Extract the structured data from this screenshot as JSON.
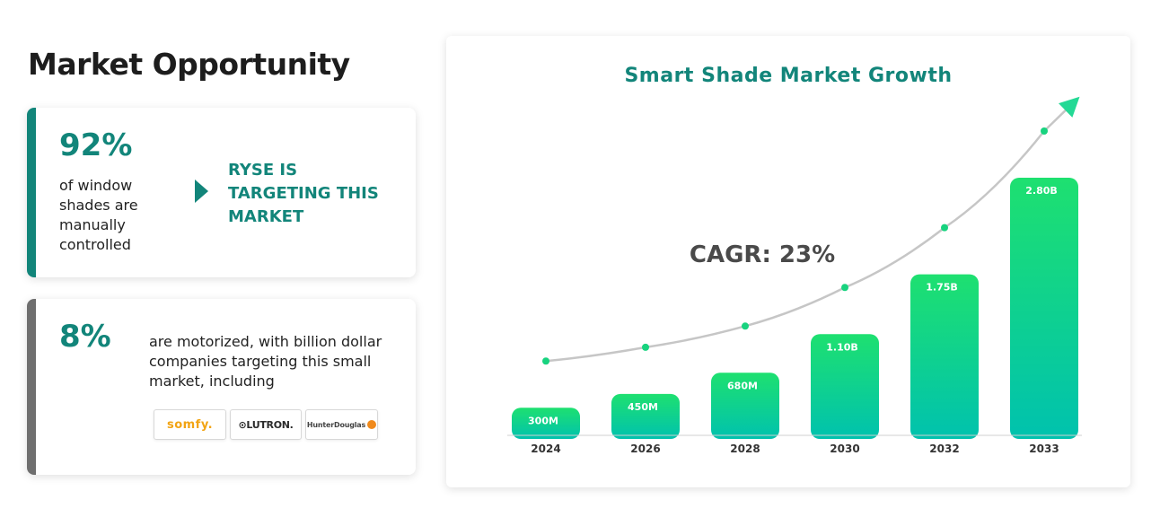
{
  "header": {
    "title": "Market Opportunity"
  },
  "card_manual": {
    "value": "92%",
    "description": "of window shades are manually controlled",
    "callout": "RYSE IS TARGETING THIS MARKET"
  },
  "card_motorized": {
    "value": "8%",
    "description": "are motorized, with billion dollar companies targeting this small market, including",
    "logos": [
      "somfy.",
      "LUTRON.",
      "HunterDouglas"
    ]
  },
  "chart_data": {
    "type": "bar",
    "title": "Smart Shade Market Growth",
    "annotation": "CAGR: 23%",
    "categories": [
      "2024",
      "2026",
      "2028",
      "2030",
      "2032",
      "2033"
    ],
    "values": [
      0.3,
      0.45,
      0.68,
      1.1,
      1.75,
      2.8
    ],
    "value_labels": [
      "300M",
      "450M",
      "680M",
      "1.10B",
      "1.75B",
      "2.80B"
    ],
    "unit": "USD billions",
    "trend_line": true,
    "ylim": [
      0,
      2.8
    ],
    "grid": false,
    "legend": "none"
  },
  "colors": {
    "accent": "#12857a",
    "bar_top": "#1ee070",
    "bar_bottom": "#00c2ae",
    "trend": "#c6c6c6",
    "trend_dot": "#18d37f",
    "arrow": "#24d995"
  }
}
